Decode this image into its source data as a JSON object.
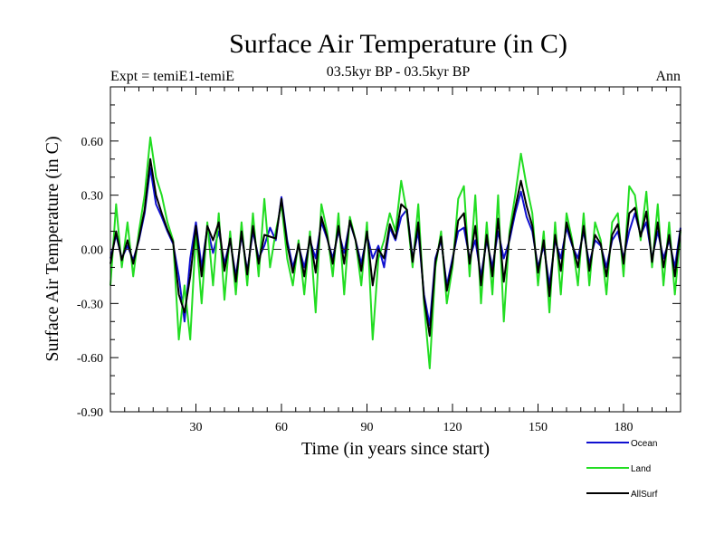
{
  "chart_data": {
    "type": "line",
    "title": "Surface Air Temperature (in C)",
    "subtitle": "03.5kyr BP - 03.5kyr BP",
    "left_label": "Expt = temiE1-temiE",
    "right_label": "Ann",
    "xlabel": "Time (in years since start)",
    "ylabel": "Surface Air Temperature (in C)",
    "xlim": [
      0,
      200
    ],
    "ylim": [
      -0.9,
      0.9
    ],
    "xticks": [
      30,
      60,
      90,
      120,
      150,
      180
    ],
    "xtick_labels": [
      "30",
      "60",
      "90",
      "120",
      "150",
      "180"
    ],
    "yticks": [
      -0.9,
      -0.6,
      -0.3,
      0.0,
      0.3,
      0.6
    ],
    "ytick_labels": [
      "-0.90",
      "-0.60",
      "-0.30",
      "0.00",
      "0.30",
      "0.60"
    ],
    "zero_line": true,
    "legend_position": "bottom-right",
    "series": [
      {
        "name": "Ocean",
        "color": "#1010d0",
        "points": [
          [
            0,
            -0.05
          ],
          [
            2,
            0.08
          ],
          [
            4,
            -0.05
          ],
          [
            6,
            0.02
          ],
          [
            8,
            -0.06
          ],
          [
            10,
            0.05
          ],
          [
            12,
            0.2
          ],
          [
            14,
            0.45
          ],
          [
            16,
            0.25
          ],
          [
            18,
            0.18
          ],
          [
            20,
            0.1
          ],
          [
            22,
            0.03
          ],
          [
            24,
            -0.15
          ],
          [
            26,
            -0.4
          ],
          [
            28,
            -0.05
          ],
          [
            30,
            0.15
          ],
          [
            32,
            -0.1
          ],
          [
            34,
            0.12
          ],
          [
            36,
            -0.02
          ],
          [
            38,
            0.1
          ],
          [
            40,
            -0.08
          ],
          [
            42,
            0.05
          ],
          [
            44,
            -0.15
          ],
          [
            46,
            0.08
          ],
          [
            48,
            -0.12
          ],
          [
            50,
            0.1
          ],
          [
            52,
            -0.05
          ],
          [
            54,
            0.02
          ],
          [
            56,
            0.12
          ],
          [
            58,
            0.05
          ],
          [
            60,
            0.29
          ],
          [
            62,
            0.05
          ],
          [
            64,
            -0.1
          ],
          [
            66,
            0.02
          ],
          [
            68,
            -0.1
          ],
          [
            70,
            0.05
          ],
          [
            72,
            -0.05
          ],
          [
            74,
            0.15
          ],
          [
            76,
            0.06
          ],
          [
            78,
            -0.05
          ],
          [
            80,
            0.1
          ],
          [
            82,
            -0.02
          ],
          [
            84,
            0.15
          ],
          [
            86,
            0.05
          ],
          [
            88,
            -0.08
          ],
          [
            90,
            0.08
          ],
          [
            92,
            -0.05
          ],
          [
            94,
            0.02
          ],
          [
            96,
            -0.1
          ],
          [
            98,
            0.12
          ],
          [
            100,
            0.05
          ],
          [
            102,
            0.18
          ],
          [
            104,
            0.22
          ],
          [
            106,
            -0.05
          ],
          [
            108,
            0.1
          ],
          [
            110,
            -0.25
          ],
          [
            112,
            -0.42
          ],
          [
            114,
            -0.05
          ],
          [
            116,
            0.05
          ],
          [
            118,
            -0.2
          ],
          [
            120,
            -0.05
          ],
          [
            122,
            0.1
          ],
          [
            124,
            0.12
          ],
          [
            126,
            -0.05
          ],
          [
            128,
            0.05
          ],
          [
            130,
            -0.15
          ],
          [
            132,
            0.05
          ],
          [
            134,
            -0.1
          ],
          [
            136,
            0.1
          ],
          [
            138,
            -0.05
          ],
          [
            140,
            0.05
          ],
          [
            142,
            0.2
          ],
          [
            144,
            0.32
          ],
          [
            146,
            0.18
          ],
          [
            148,
            0.1
          ],
          [
            150,
            -0.1
          ],
          [
            152,
            0.02
          ],
          [
            154,
            -0.2
          ],
          [
            156,
            0.05
          ],
          [
            158,
            -0.05
          ],
          [
            160,
            0.12
          ],
          [
            162,
            0.02
          ],
          [
            164,
            -0.05
          ],
          [
            166,
            0.1
          ],
          [
            168,
            -0.08
          ],
          [
            170,
            0.05
          ],
          [
            172,
            0.02
          ],
          [
            174,
            -0.1
          ],
          [
            176,
            0.05
          ],
          [
            178,
            0.1
          ],
          [
            180,
            -0.05
          ],
          [
            182,
            0.1
          ],
          [
            184,
            0.2
          ],
          [
            186,
            0.08
          ],
          [
            188,
            0.15
          ],
          [
            190,
            -0.05
          ],
          [
            192,
            0.1
          ],
          [
            194,
            -0.05
          ],
          [
            196,
            0.05
          ],
          [
            198,
            -0.1
          ],
          [
            200,
            0.12
          ]
        ]
      },
      {
        "name": "Land",
        "color": "#22dd22",
        "points": [
          [
            0,
            -0.2
          ],
          [
            2,
            0.25
          ],
          [
            4,
            -0.1
          ],
          [
            6,
            0.15
          ],
          [
            8,
            -0.15
          ],
          [
            10,
            0.1
          ],
          [
            12,
            0.3
          ],
          [
            14,
            0.62
          ],
          [
            16,
            0.4
          ],
          [
            18,
            0.3
          ],
          [
            20,
            0.15
          ],
          [
            22,
            0.05
          ],
          [
            24,
            -0.5
          ],
          [
            26,
            -0.2
          ],
          [
            28,
            -0.5
          ],
          [
            30,
            0.1
          ],
          [
            32,
            -0.3
          ],
          [
            34,
            0.15
          ],
          [
            36,
            -0.2
          ],
          [
            38,
            0.2
          ],
          [
            40,
            -0.28
          ],
          [
            42,
            0.1
          ],
          [
            44,
            -0.25
          ],
          [
            46,
            0.15
          ],
          [
            48,
            -0.2
          ],
          [
            50,
            0.2
          ],
          [
            52,
            -0.15
          ],
          [
            54,
            0.28
          ],
          [
            56,
            -0.1
          ],
          [
            58,
            0.1
          ],
          [
            60,
            0.25
          ],
          [
            62,
            -0.05
          ],
          [
            64,
            -0.2
          ],
          [
            66,
            0.05
          ],
          [
            68,
            -0.25
          ],
          [
            70,
            0.1
          ],
          [
            72,
            -0.35
          ],
          [
            74,
            0.25
          ],
          [
            76,
            0.1
          ],
          [
            78,
            -0.15
          ],
          [
            80,
            0.2
          ],
          [
            82,
            -0.25
          ],
          [
            84,
            0.18
          ],
          [
            86,
            0.05
          ],
          [
            88,
            -0.2
          ],
          [
            90,
            0.15
          ],
          [
            92,
            -0.5
          ],
          [
            94,
            -0.05
          ],
          [
            96,
            0.05
          ],
          [
            98,
            0.2
          ],
          [
            100,
            0.1
          ],
          [
            102,
            0.38
          ],
          [
            104,
            0.2
          ],
          [
            106,
            -0.1
          ],
          [
            108,
            0.25
          ],
          [
            110,
            -0.3
          ],
          [
            112,
            -0.66
          ],
          [
            114,
            -0.1
          ],
          [
            116,
            0.1
          ],
          [
            118,
            -0.3
          ],
          [
            120,
            -0.1
          ],
          [
            122,
            0.28
          ],
          [
            124,
            0.35
          ],
          [
            126,
            -0.15
          ],
          [
            128,
            0.3
          ],
          [
            130,
            -0.3
          ],
          [
            132,
            0.15
          ],
          [
            134,
            -0.25
          ],
          [
            136,
            0.3
          ],
          [
            138,
            -0.4
          ],
          [
            140,
            0.1
          ],
          [
            142,
            0.3
          ],
          [
            144,
            0.53
          ],
          [
            146,
            0.35
          ],
          [
            148,
            0.2
          ],
          [
            150,
            -0.2
          ],
          [
            152,
            0.1
          ],
          [
            154,
            -0.35
          ],
          [
            156,
            0.15
          ],
          [
            158,
            -0.25
          ],
          [
            160,
            0.2
          ],
          [
            162,
            0.05
          ],
          [
            164,
            -0.2
          ],
          [
            166,
            0.2
          ],
          [
            168,
            -0.2
          ],
          [
            170,
            0.15
          ],
          [
            172,
            0.05
          ],
          [
            174,
            -0.25
          ],
          [
            176,
            0.15
          ],
          [
            178,
            0.2
          ],
          [
            180,
            -0.15
          ],
          [
            182,
            0.35
          ],
          [
            184,
            0.3
          ],
          [
            186,
            0.05
          ],
          [
            188,
            0.32
          ],
          [
            190,
            -0.1
          ],
          [
            192,
            0.25
          ],
          [
            194,
            -0.2
          ],
          [
            196,
            0.15
          ],
          [
            198,
            -0.25
          ],
          [
            200,
            0.1
          ]
        ]
      },
      {
        "name": "AllSurf",
        "color": "#000000",
        "points": [
          [
            0,
            -0.08
          ],
          [
            2,
            0.1
          ],
          [
            4,
            -0.06
          ],
          [
            6,
            0.05
          ],
          [
            8,
            -0.08
          ],
          [
            10,
            0.06
          ],
          [
            12,
            0.22
          ],
          [
            14,
            0.5
          ],
          [
            16,
            0.3
          ],
          [
            18,
            0.2
          ],
          [
            20,
            0.11
          ],
          [
            22,
            0.04
          ],
          [
            24,
            -0.25
          ],
          [
            26,
            -0.35
          ],
          [
            28,
            -0.15
          ],
          [
            30,
            0.13
          ],
          [
            32,
            -0.15
          ],
          [
            34,
            0.13
          ],
          [
            36,
            0.05
          ],
          [
            38,
            0.15
          ],
          [
            40,
            -0.12
          ],
          [
            42,
            0.06
          ],
          [
            44,
            -0.18
          ],
          [
            46,
            0.1
          ],
          [
            48,
            -0.14
          ],
          [
            50,
            0.13
          ],
          [
            52,
            -0.08
          ],
          [
            54,
            0.08
          ],
          [
            56,
            0.07
          ],
          [
            58,
            0.06
          ],
          [
            60,
            0.28
          ],
          [
            62,
            0.03
          ],
          [
            64,
            -0.13
          ],
          [
            66,
            0.03
          ],
          [
            68,
            -0.15
          ],
          [
            70,
            0.07
          ],
          [
            72,
            -0.13
          ],
          [
            74,
            0.18
          ],
          [
            76,
            0.07
          ],
          [
            78,
            -0.08
          ],
          [
            80,
            0.13
          ],
          [
            82,
            -0.08
          ],
          [
            84,
            0.16
          ],
          [
            86,
            0.05
          ],
          [
            88,
            -0.12
          ],
          [
            90,
            0.1
          ],
          [
            92,
            -0.2
          ],
          [
            94,
            0.0
          ],
          [
            96,
            -0.05
          ],
          [
            98,
            0.14
          ],
          [
            100,
            0.06
          ],
          [
            102,
            0.25
          ],
          [
            104,
            0.22
          ],
          [
            106,
            -0.07
          ],
          [
            108,
            0.15
          ],
          [
            110,
            -0.27
          ],
          [
            112,
            -0.48
          ],
          [
            114,
            -0.07
          ],
          [
            116,
            0.07
          ],
          [
            118,
            -0.23
          ],
          [
            120,
            -0.07
          ],
          [
            122,
            0.16
          ],
          [
            124,
            0.2
          ],
          [
            126,
            -0.08
          ],
          [
            128,
            0.13
          ],
          [
            130,
            -0.2
          ],
          [
            132,
            0.08
          ],
          [
            134,
            -0.15
          ],
          [
            136,
            0.17
          ],
          [
            138,
            -0.18
          ],
          [
            140,
            0.07
          ],
          [
            142,
            0.23
          ],
          [
            144,
            0.38
          ],
          [
            146,
            0.24
          ],
          [
            148,
            0.13
          ],
          [
            150,
            -0.13
          ],
          [
            152,
            0.05
          ],
          [
            154,
            -0.26
          ],
          [
            156,
            0.08
          ],
          [
            158,
            -0.12
          ],
          [
            160,
            0.15
          ],
          [
            162,
            0.03
          ],
          [
            164,
            -0.1
          ],
          [
            166,
            0.13
          ],
          [
            168,
            -0.12
          ],
          [
            170,
            0.08
          ],
          [
            172,
            0.03
          ],
          [
            174,
            -0.15
          ],
          [
            176,
            0.08
          ],
          [
            178,
            0.14
          ],
          [
            180,
            -0.08
          ],
          [
            182,
            0.2
          ],
          [
            184,
            0.23
          ],
          [
            186,
            0.07
          ],
          [
            188,
            0.21
          ],
          [
            190,
            -0.07
          ],
          [
            192,
            0.15
          ],
          [
            194,
            -0.1
          ],
          [
            196,
            0.08
          ],
          [
            198,
            -0.15
          ],
          [
            200,
            0.11
          ]
        ]
      }
    ]
  }
}
